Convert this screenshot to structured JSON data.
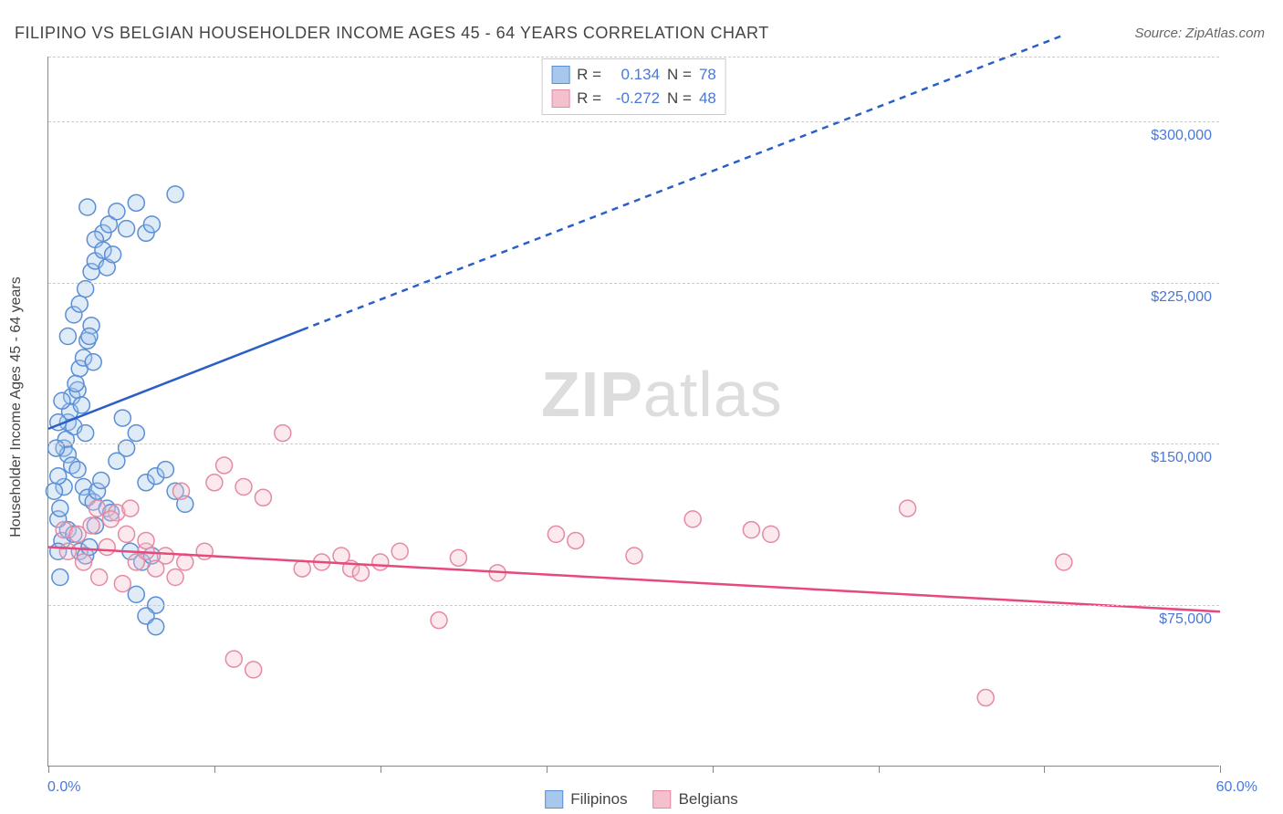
{
  "title": "FILIPINO VS BELGIAN HOUSEHOLDER INCOME AGES 45 - 64 YEARS CORRELATION CHART",
  "source": "Source: ZipAtlas.com",
  "watermark": {
    "zip": "ZIP",
    "atlas": "atlas"
  },
  "yaxis_label": "Householder Income Ages 45 - 64 years",
  "chart": {
    "type": "scatter",
    "background_color": "#ffffff",
    "grid_color": "#cccccc",
    "grid_dash": "4,4",
    "axis_color": "#888888",
    "xlim": [
      0,
      60
    ],
    "ylim": [
      0,
      330000
    ],
    "xtick_positions_pct": [
      0,
      8.5,
      17,
      25.5,
      34,
      42.5,
      51,
      60
    ],
    "xtick_label_left": "0.0%",
    "xtick_label_right": "60.0%",
    "ytick_values": [
      75000,
      150000,
      225000,
      300000
    ],
    "ytick_labels": [
      "$75,000",
      "$150,000",
      "$225,000",
      "$300,000"
    ],
    "marker_radius": 9,
    "marker_stroke_width": 1.5,
    "marker_fill_opacity": 0.35,
    "trend_line_width": 2.5,
    "series": [
      {
        "name": "Filipinos",
        "color_stroke": "#5a8fd6",
        "color_fill": "#a7c7ec",
        "trend_color": "#2a5fc8",
        "R": "0.134",
        "N": "78",
        "trend": {
          "x1": 0,
          "y1": 157000,
          "x2_solid": 13,
          "y2_solid": 203000,
          "x2": 52,
          "y2": 340000,
          "dash": "7,6"
        },
        "points": [
          [
            1.0,
            160000
          ],
          [
            1.2,
            172000
          ],
          [
            1.3,
            158000
          ],
          [
            0.8,
            148000
          ],
          [
            1.1,
            165000
          ],
          [
            1.5,
            175000
          ],
          [
            1.6,
            185000
          ],
          [
            1.8,
            190000
          ],
          [
            2.0,
            198000
          ],
          [
            2.2,
            205000
          ],
          [
            2.1,
            200000
          ],
          [
            2.3,
            188000
          ],
          [
            1.4,
            178000
          ],
          [
            1.7,
            168000
          ],
          [
            1.9,
            155000
          ],
          [
            0.9,
            152000
          ],
          [
            1.0,
            145000
          ],
          [
            1.2,
            140000
          ],
          [
            1.5,
            138000
          ],
          [
            1.8,
            130000
          ],
          [
            2.0,
            125000
          ],
          [
            2.3,
            123000
          ],
          [
            2.5,
            128000
          ],
          [
            2.7,
            133000
          ],
          [
            3.0,
            120000
          ],
          [
            3.2,
            118000
          ],
          [
            0.7,
            105000
          ],
          [
            1.0,
            110000
          ],
          [
            1.3,
            108000
          ],
          [
            1.6,
            100000
          ],
          [
            1.9,
            98000
          ],
          [
            2.1,
            102000
          ],
          [
            2.4,
            112000
          ],
          [
            0.5,
            115000
          ],
          [
            0.6,
            120000
          ],
          [
            0.8,
            130000
          ],
          [
            0.5,
            100000
          ],
          [
            0.6,
            88000
          ],
          [
            3.5,
            142000
          ],
          [
            4.0,
            148000
          ],
          [
            4.5,
            155000
          ],
          [
            5.0,
            132000
          ],
          [
            5.5,
            135000
          ],
          [
            6.0,
            138000
          ],
          [
            6.5,
            128000
          ],
          [
            7.0,
            122000
          ],
          [
            4.2,
            100000
          ],
          [
            4.8,
            95000
          ],
          [
            5.3,
            98000
          ],
          [
            3.8,
            162000
          ],
          [
            1.0,
            200000
          ],
          [
            1.3,
            210000
          ],
          [
            1.6,
            215000
          ],
          [
            1.9,
            222000
          ],
          [
            2.2,
            230000
          ],
          [
            2.4,
            235000
          ],
          [
            2.8,
            248000
          ],
          [
            3.1,
            252000
          ],
          [
            3.5,
            258000
          ],
          [
            4.0,
            250000
          ],
          [
            4.5,
            262000
          ],
          [
            5.0,
            248000
          ],
          [
            5.3,
            252000
          ],
          [
            6.5,
            266000
          ],
          [
            2.0,
            260000
          ],
          [
            2.4,
            245000
          ],
          [
            2.8,
            240000
          ],
          [
            3.0,
            232000
          ],
          [
            3.3,
            238000
          ],
          [
            0.5,
            160000
          ],
          [
            0.7,
            170000
          ],
          [
            0.4,
            148000
          ],
          [
            0.5,
            135000
          ],
          [
            0.3,
            128000
          ],
          [
            4.5,
            80000
          ],
          [
            5.5,
            75000
          ],
          [
            5.0,
            70000
          ],
          [
            5.5,
            65000
          ]
        ]
      },
      {
        "name": "Belgians",
        "color_stroke": "#e58aa3",
        "color_fill": "#f4c0ce",
        "trend_color": "#e64a7a",
        "R": "-0.272",
        "N": "48",
        "trend": {
          "x1": 0,
          "y1": 102000,
          "x2_solid": 60,
          "y2_solid": 72000,
          "x2": 60,
          "y2": 72000,
          "dash": ""
        },
        "points": [
          [
            0.8,
            110000
          ],
          [
            1.5,
            108000
          ],
          [
            2.2,
            112000
          ],
          [
            3.0,
            102000
          ],
          [
            3.5,
            118000
          ],
          [
            4.0,
            108000
          ],
          [
            4.5,
            95000
          ],
          [
            5.0,
            100000
          ],
          [
            5.5,
            92000
          ],
          [
            6.0,
            98000
          ],
          [
            6.5,
            88000
          ],
          [
            7.0,
            95000
          ],
          [
            8.0,
            100000
          ],
          [
            8.5,
            132000
          ],
          [
            9.0,
            140000
          ],
          [
            10.0,
            130000
          ],
          [
            11.0,
            125000
          ],
          [
            12.0,
            155000
          ],
          [
            13.0,
            92000
          ],
          [
            14.0,
            95000
          ],
          [
            15.0,
            98000
          ],
          [
            15.5,
            92000
          ],
          [
            16.0,
            90000
          ],
          [
            17.0,
            95000
          ],
          [
            18.0,
            100000
          ],
          [
            9.5,
            50000
          ],
          [
            10.5,
            45000
          ],
          [
            20.0,
            68000
          ],
          [
            21.0,
            97000
          ],
          [
            23.0,
            90000
          ],
          [
            26.0,
            108000
          ],
          [
            27.0,
            105000
          ],
          [
            30.0,
            98000
          ],
          [
            33.0,
            115000
          ],
          [
            36.0,
            110000
          ],
          [
            37.0,
            108000
          ],
          [
            44.0,
            120000
          ],
          [
            48.0,
            32000
          ],
          [
            52.0,
            95000
          ],
          [
            2.5,
            120000
          ],
          [
            3.2,
            115000
          ],
          [
            4.2,
            120000
          ],
          [
            5.0,
            105000
          ],
          [
            1.0,
            100000
          ],
          [
            1.8,
            95000
          ],
          [
            2.6,
            88000
          ],
          [
            3.8,
            85000
          ],
          [
            6.8,
            128000
          ]
        ]
      }
    ]
  },
  "legend": {
    "series1_label": "Filipinos",
    "series2_label": "Belgians"
  },
  "stats_legend": {
    "r_label": "R =",
    "n_label": "N ="
  }
}
